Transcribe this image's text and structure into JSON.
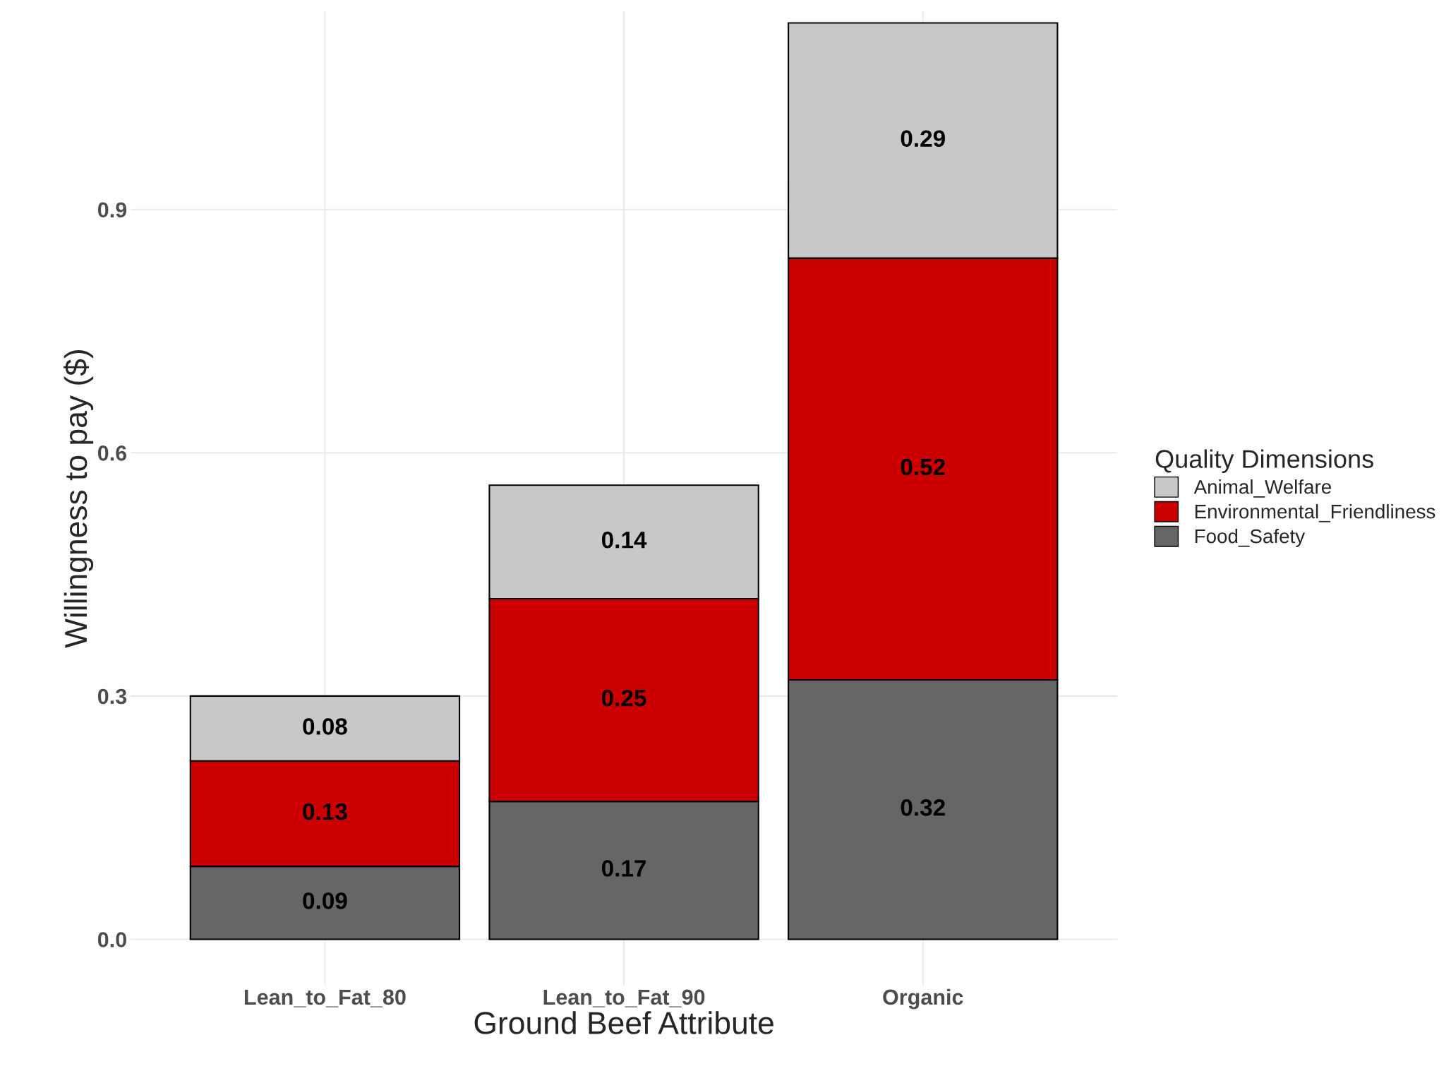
{
  "chart_data": {
    "type": "bar",
    "stacked": true,
    "xlabel": "Ground Beef Attribute",
    "ylabel": "Willingness to pay ($)",
    "legend_title": "Quality Dimensions",
    "categories": [
      "Lean_to_Fat_80",
      "Lean_to_Fat_90",
      "Organic"
    ],
    "series": [
      {
        "name": "Food_Safety",
        "color": "#666666",
        "values": [
          0.09,
          0.17,
          0.32
        ]
      },
      {
        "name": "Environmental_Friendliness",
        "color": "#cc0000",
        "values": [
          0.13,
          0.25,
          0.52
        ]
      },
      {
        "name": "Animal_Welfare",
        "color": "#c8c8c8",
        "values": [
          0.08,
          0.14,
          0.29
        ]
      }
    ],
    "ylim": [
      -0.057,
      1.145
    ],
    "yticks": [
      {
        "value": 0,
        "label": "0.0"
      },
      0.3,
      0.6,
      0.9
    ],
    "grid": true,
    "legend": "right",
    "data_labels": true
  }
}
